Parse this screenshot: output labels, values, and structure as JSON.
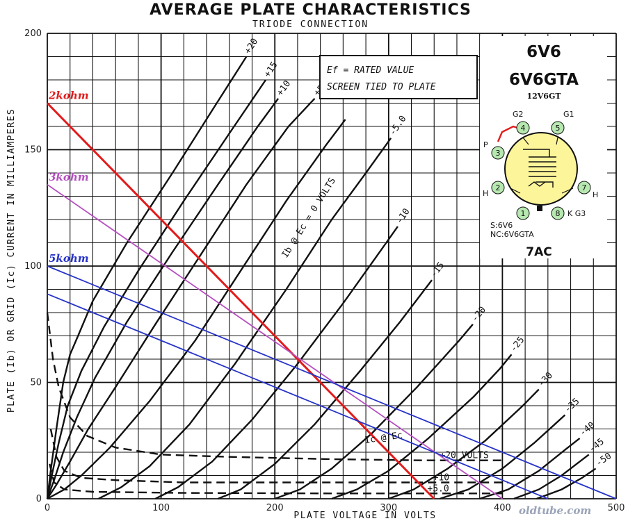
{
  "chart_data": {
    "type": "line",
    "title": "AVERAGE PLATE CHARACTERISTICS",
    "subtitle": "TRIODE CONNECTION",
    "xlabel": "PLATE VOLTAGE IN VOLTS",
    "ylabel": "PLATE (Ib) OR GRID (Ic) CURRENT IN MILLIAMPERES",
    "xlim": [
      0,
      500
    ],
    "ylim": [
      0,
      200
    ],
    "x_ticks": [
      "0",
      "100",
      "200",
      "300",
      "400",
      "500"
    ],
    "y_ticks": [
      "0",
      "50",
      "100",
      "150",
      "200"
    ],
    "grid": true,
    "plate_curves_label": "Ib @ Ec = 0 VOLTS",
    "plate_curves": [
      {
        "label": "+20",
        "ec": 20,
        "points": [
          [
            0,
            0
          ],
          [
            3,
            12
          ],
          [
            8,
            30
          ],
          [
            14,
            50
          ],
          [
            20,
            62
          ],
          [
            27,
            70
          ],
          [
            40,
            85
          ],
          [
            70,
            110
          ],
          [
            110,
            140
          ],
          [
            145,
            167
          ],
          [
            175,
            190
          ]
        ]
      },
      {
        "label": "+15",
        "ec": 15,
        "points": [
          [
            0,
            0
          ],
          [
            4,
            10
          ],
          [
            10,
            24
          ],
          [
            18,
            40
          ],
          [
            30,
            55
          ],
          [
            50,
            74
          ],
          [
            80,
            98
          ],
          [
            120,
            128
          ],
          [
            160,
            157
          ],
          [
            192,
            180
          ]
        ]
      },
      {
        "label": "+10",
        "ec": 10,
        "points": [
          [
            0,
            0
          ],
          [
            6,
            8
          ],
          [
            14,
            20
          ],
          [
            26,
            35
          ],
          [
            42,
            52
          ],
          [
            70,
            76
          ],
          [
            110,
            106
          ],
          [
            150,
            135
          ],
          [
            185,
            160
          ],
          [
            203,
            172
          ]
        ]
      },
      {
        "label": "+5.0",
        "ec": 5,
        "points": [
          [
            0,
            0
          ],
          [
            8,
            6
          ],
          [
            20,
            16
          ],
          [
            36,
            30
          ],
          [
            60,
            48
          ],
          [
            95,
            75
          ],
          [
            135,
            105
          ],
          [
            175,
            135
          ],
          [
            212,
            160
          ],
          [
            235,
            172
          ]
        ]
      },
      {
        "label": "0",
        "ec": 0,
        "points": [
          [
            0,
            0
          ],
          [
            15,
            4
          ],
          [
            30,
            10
          ],
          [
            55,
            22
          ],
          [
            90,
            42
          ],
          [
            130,
            68
          ],
          [
            170,
            98
          ],
          [
            210,
            128
          ],
          [
            245,
            152
          ],
          [
            262,
            163
          ]
        ]
      },
      {
        "label": "-5.0",
        "ec": -5,
        "points": [
          [
            45,
            0
          ],
          [
            65,
            5
          ],
          [
            90,
            14
          ],
          [
            125,
            32
          ],
          [
            165,
            58
          ],
          [
            210,
            90
          ],
          [
            250,
            120
          ],
          [
            280,
            140
          ],
          [
            302,
            155
          ]
        ]
      },
      {
        "label": "-10",
        "ec": -10,
        "points": [
          [
            95,
            0
          ],
          [
            115,
            5
          ],
          [
            145,
            16
          ],
          [
            180,
            34
          ],
          [
            220,
            58
          ],
          [
            260,
            84
          ],
          [
            295,
            108
          ],
          [
            308,
            117
          ]
        ]
      },
      {
        "label": "-15",
        "ec": -15,
        "points": [
          [
            150,
            0
          ],
          [
            170,
            4
          ],
          [
            200,
            15
          ],
          [
            235,
            32
          ],
          [
            275,
            55
          ],
          [
            310,
            76
          ],
          [
            338,
            94
          ]
        ]
      },
      {
        "label": "-20",
        "ec": -20,
        "points": [
          [
            200,
            0
          ],
          [
            222,
            4
          ],
          [
            250,
            13
          ],
          [
            285,
            28
          ],
          [
            325,
            48
          ],
          [
            362,
            68
          ],
          [
            374,
            75
          ]
        ]
      },
      {
        "label": "-25",
        "ec": -25,
        "points": [
          [
            250,
            0
          ],
          [
            272,
            4
          ],
          [
            300,
            12
          ],
          [
            335,
            26
          ],
          [
            375,
            44
          ],
          [
            398,
            56
          ],
          [
            408,
            62
          ]
        ]
      },
      {
        "label": "-30",
        "ec": -30,
        "points": [
          [
            300,
            0
          ],
          [
            322,
            4
          ],
          [
            352,
            13
          ],
          [
            385,
            25
          ],
          [
            418,
            40
          ],
          [
            432,
            47
          ]
        ]
      },
      {
        "label": "-35",
        "ec": -35,
        "points": [
          [
            345,
            0
          ],
          [
            370,
            4
          ],
          [
            400,
            13
          ],
          [
            428,
            24
          ],
          [
            446,
            32
          ],
          [
            455,
            36
          ]
        ]
      },
      {
        "label": "-40",
        "ec": -40,
        "points": [
          [
            380,
            0
          ],
          [
            405,
            4
          ],
          [
            432,
            12
          ],
          [
            455,
            21
          ],
          [
            468,
            26
          ]
        ]
      },
      {
        "label": "-45",
        "ec": -45,
        "points": [
          [
            410,
            0
          ],
          [
            432,
            4
          ],
          [
            452,
            10
          ],
          [
            468,
            16
          ],
          [
            476,
            19
          ]
        ]
      },
      {
        "label": "-50",
        "ec": -50,
        "points": [
          [
            430,
            0
          ],
          [
            452,
            4
          ],
          [
            470,
            9
          ],
          [
            482,
            13
          ]
        ]
      }
    ],
    "grid_current_label": "Ic @ Ec",
    "grid_current_unit": "VOLTS",
    "grid_curves": [
      {
        "label": "+20",
        "points": [
          [
            0,
            80
          ],
          [
            5,
            60
          ],
          [
            10,
            48
          ],
          [
            20,
            35
          ],
          [
            35,
            27
          ],
          [
            60,
            22
          ],
          [
            100,
            19
          ],
          [
            160,
            18
          ],
          [
            250,
            17
          ],
          [
            330,
            16.5
          ],
          [
            400,
            16.5
          ]
        ]
      },
      {
        "label": "+10",
        "points": [
          [
            3,
            30
          ],
          [
            8,
            18
          ],
          [
            15,
            12
          ],
          [
            30,
            9
          ],
          [
            60,
            8
          ],
          [
            120,
            7
          ],
          [
            220,
            7
          ],
          [
            330,
            7
          ],
          [
            405,
            7
          ]
        ]
      },
      {
        "label": "+5.0",
        "points": [
          [
            2,
            15
          ],
          [
            6,
            7
          ],
          [
            15,
            4
          ],
          [
            40,
            3
          ],
          [
            120,
            2.5
          ],
          [
            250,
            2.3
          ],
          [
            330,
            2.3
          ],
          [
            400,
            2.3
          ]
        ]
      }
    ],
    "load_lines": [
      {
        "name": "2kohm",
        "color": "#e21b1b",
        "points": [
          [
            0,
            170
          ],
          [
            340,
            0
          ]
        ]
      },
      {
        "name": "3kohm",
        "color": "#b64fc1",
        "points": [
          [
            0,
            135
          ],
          [
            400,
            0
          ]
        ]
      },
      {
        "name": "5kohm",
        "color": "#2733c9",
        "points": [
          [
            0,
            100
          ],
          [
            500,
            0
          ]
        ]
      },
      {
        "name": "",
        "color": "#2733c9",
        "points": [
          [
            0,
            88
          ],
          [
            440,
            0
          ]
        ]
      }
    ],
    "annotation": [
      "Ef = RATED VALUE",
      "SCREEN TIED TO PLATE"
    ]
  },
  "tube_info": {
    "types": [
      "6V6",
      "6V6GTA"
    ],
    "alt_type": "12V6GT",
    "pins": [
      {
        "num": "1",
        "label": ""
      },
      {
        "num": "2",
        "label": "H"
      },
      {
        "num": "3",
        "label": "P"
      },
      {
        "num": "4",
        "label": "G2"
      },
      {
        "num": "5",
        "label": "G1"
      },
      {
        "num": "7",
        "label": "H"
      },
      {
        "num": "8",
        "label": "K G3"
      }
    ],
    "notes": [
      "S:6V6",
      "NC:6V6GTA"
    ],
    "basing": "7AC",
    "colors": {
      "tube_fill": "#fdf59a",
      "pin_fill": "#b6e8b0",
      "strap": "#e21b1b"
    }
  },
  "watermark": "oldtube.com"
}
